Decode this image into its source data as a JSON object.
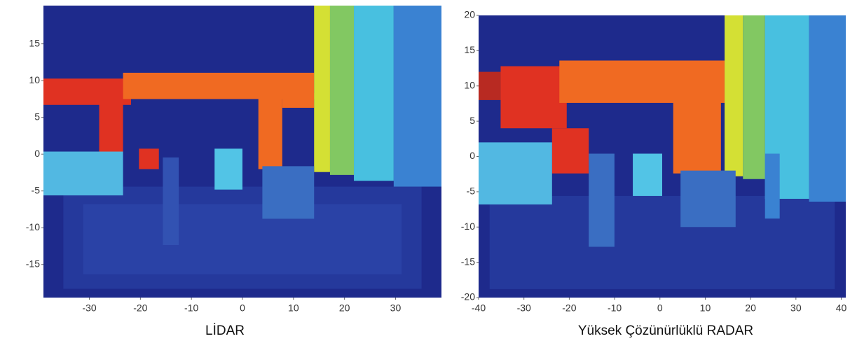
{
  "chart_data": [
    {
      "type": "image",
      "title": "LİDAR",
      "xlim": [
        -39,
        39
      ],
      "xticks": [
        -30,
        -20,
        -10,
        0,
        10,
        20,
        30
      ],
      "ylim": [
        -19.5,
        20.2
      ],
      "yticks": [
        -15,
        -10,
        -5,
        0,
        5,
        10,
        15
      ]
    },
    {
      "type": "image",
      "title": "Yüksek Çözünürlüklü RADAR",
      "xlim": [
        -40,
        41
      ],
      "xticks": [
        -40,
        -30,
        -20,
        -10,
        0,
        10,
        20,
        30,
        40
      ],
      "ylim": [
        -20,
        20
      ],
      "yticks": [
        -20,
        -15,
        -10,
        -5,
        0,
        5,
        10,
        15,
        20
      ]
    }
  ]
}
